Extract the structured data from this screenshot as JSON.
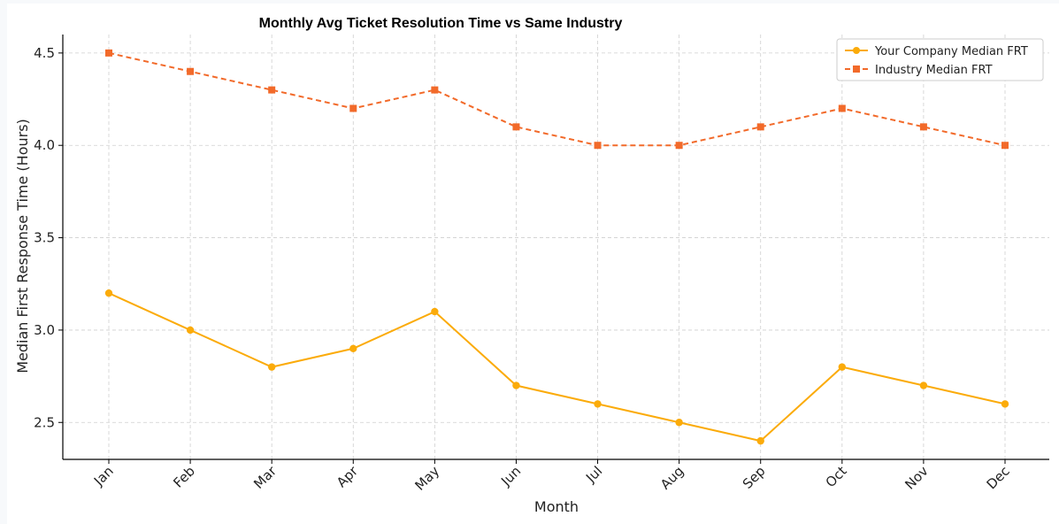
{
  "chart_data": {
    "type": "line",
    "title": "Monthly Avg Ticket Resolution Time vs Same Industry",
    "xlabel": "Month",
    "ylabel": "Median First Response Time (Hours)",
    "categories": [
      "Jan",
      "Feb",
      "Mar",
      "Apr",
      "May",
      "Jun",
      "Jul",
      "Aug",
      "Sep",
      "Oct",
      "Nov",
      "Dec"
    ],
    "ylim": [
      2.3,
      4.6
    ],
    "yticks": [
      2.5,
      3.0,
      3.5,
      4.0,
      4.5
    ],
    "ytick_labels": [
      "2.5",
      "3.0",
      "3.5",
      "4.0",
      "4.5"
    ],
    "grid": true,
    "legend_position": "top-right",
    "series": [
      {
        "name": "Your Company Median FRT",
        "values": [
          3.2,
          3.0,
          2.8,
          2.9,
          3.1,
          2.7,
          2.6,
          2.5,
          2.4,
          2.8,
          2.7,
          2.6
        ],
        "color": "#fbab0a",
        "marker": "circle",
        "line_style": "solid"
      },
      {
        "name": "Industry Median FRT",
        "values": [
          4.5,
          4.4,
          4.3,
          4.2,
          4.3,
          4.1,
          4.0,
          4.0,
          4.1,
          4.2,
          4.1,
          4.0
        ],
        "color": "#f26a2a",
        "marker": "square",
        "line_style": "dashed"
      }
    ]
  }
}
